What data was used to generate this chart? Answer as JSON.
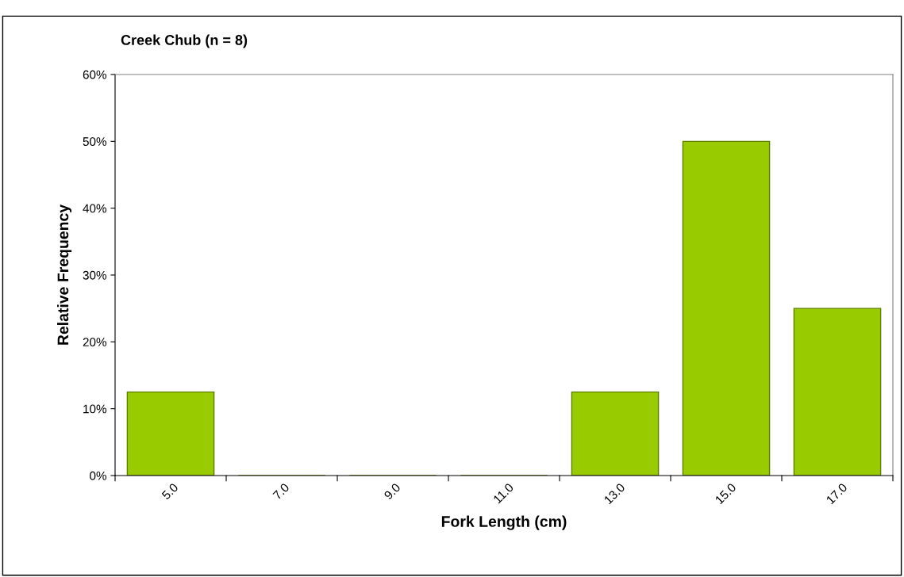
{
  "chart_data": {
    "type": "bar",
    "title": "Creek Chub (n = 8)",
    "xlabel": "Fork Length (cm)",
    "ylabel": "Relative Frequency",
    "categories": [
      "5.0",
      "7.0",
      "9.0",
      "11.0",
      "13.0",
      "15.0",
      "17.0"
    ],
    "values": [
      12.5,
      0,
      0,
      0,
      12.5,
      50,
      25
    ],
    "color": "#99cc00",
    "ylim": [
      0,
      60
    ],
    "yticks": [
      {
        "value": 0,
        "label": "0%"
      },
      {
        "value": 10,
        "label": "10%"
      },
      {
        "value": 20,
        "label": "20%"
      },
      {
        "value": 30,
        "label": "30%"
      },
      {
        "value": 40,
        "label": "40%"
      },
      {
        "value": 50,
        "label": "50%"
      },
      {
        "value": 60,
        "label": "60%"
      }
    ],
    "grid": false,
    "legend": false
  }
}
